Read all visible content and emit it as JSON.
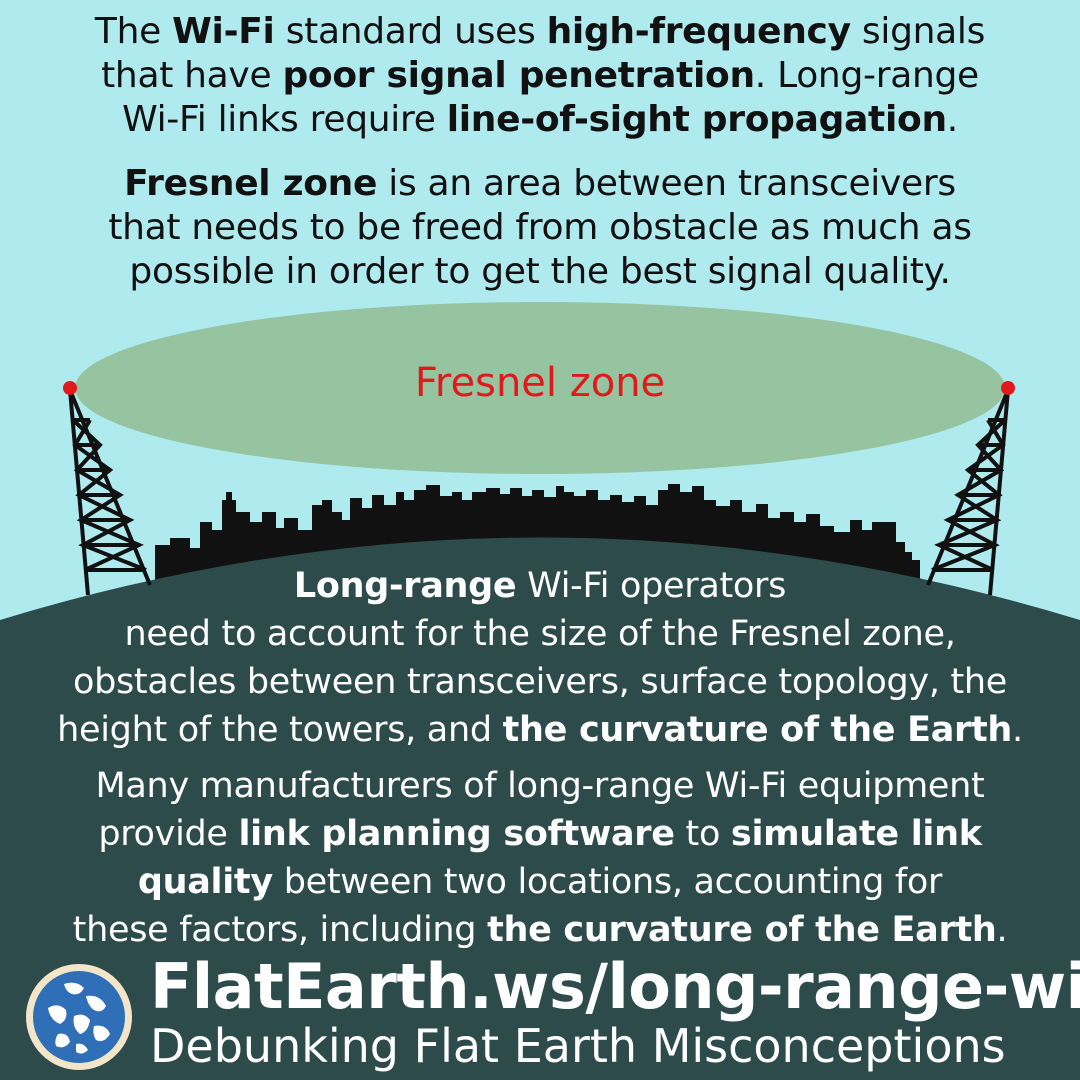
{
  "intro": {
    "p1": "The ",
    "b1": "Wi-Fi",
    "p2": " standard uses ",
    "b2": "high-frequency",
    "p3": " signals",
    "p4": "that have ",
    "b3": "poor signal penetration",
    "p5": ". Long-range",
    "p6": "Wi-Fi links require ",
    "b4": "line-of-sight propagation",
    "p7": "."
  },
  "fresnel_def": {
    "b1": "Fresnel zone",
    "p1": " is an area between transceivers",
    "p2": "that needs to be freed from obstacle as much as",
    "p3": "possible in order to get the best signal quality."
  },
  "diagram": {
    "ellipse_label": "Fresnel zone",
    "colors": {
      "sky": "#aeeaee",
      "ellipse": "#97c4a0",
      "earth": "#2e4b4b",
      "tower": "#111111",
      "antenna_tip": "#e0191d"
    }
  },
  "operators": {
    "b1": "Long-range",
    "p1": " Wi-Fi operators",
    "p2": "need to account for the size of the Fresnel zone,",
    "p3": "obstacles between transceivers, surface topology, the",
    "p4": "height of the towers, and ",
    "b2": "the curvature of the Earth",
    "p5": "."
  },
  "manufacturers": {
    "p1": "Many manufacturers of long-range Wi-Fi equipment",
    "p2": "provide ",
    "b1": "link planning software",
    "p3": " to ",
    "b2": "simulate link",
    "b3": "quality",
    "p4": " between two locations, accounting for",
    "p5": "these factors, including ",
    "b4": "the curvature of the Earth",
    "p6": "."
  },
  "footer": {
    "url": "FlatEarth.ws/long-range-wifi",
    "subtitle": "Debunking Flat Earth Misconceptions",
    "logo_icon": "globe-logo-icon"
  }
}
